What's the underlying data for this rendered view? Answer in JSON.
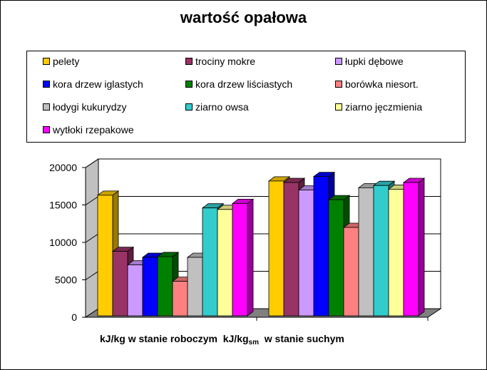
{
  "chart_data": {
    "type": "bar",
    "title": "wartość opałowa",
    "categories": [
      "kJ/kg w stanie roboczym",
      "kJ/kg w stanie suchym"
    ],
    "xlabel_parts": {
      "first": "kJ/kg w stanie roboczym",
      "second_main": "kJ/kg",
      "second_sub": "sm",
      "second_rest": "w stanie suchym"
    },
    "ylim": [
      0,
      20000
    ],
    "yticks": [
      "20000",
      "15000",
      "10000",
      "5000",
      "0"
    ],
    "grid": true,
    "legend_position": "top",
    "three_d": true,
    "series": [
      {
        "name": "pelety",
        "color": "#FFCC00",
        "values": [
          16300,
          18200
        ]
      },
      {
        "name": "trociny mokre",
        "color": "#993366",
        "values": [
          8800,
          18000
        ]
      },
      {
        "name": "łupki dębowe",
        "color": "#CC99FF",
        "values": [
          7000,
          17000
        ]
      },
      {
        "name": "kora drzew iglastych",
        "color": "#0000FF",
        "values": [
          8000,
          18800
        ]
      },
      {
        "name": "kora drzew liściastych",
        "color": "#008000",
        "values": [
          8100,
          15700
        ]
      },
      {
        "name": "borówka niesort.",
        "color": "#FF8080",
        "values": [
          4800,
          12000
        ]
      },
      {
        "name": "łodygi kukurydzy",
        "color": "#C0C0C0",
        "values": [
          8000,
          17300
        ]
      },
      {
        "name": "ziarno owsa",
        "color": "#33CCCC",
        "values": [
          14600,
          17600
        ]
      },
      {
        "name": "ziarno jęczmienia",
        "color": "#FFFF99",
        "values": [
          14400,
          17100
        ]
      },
      {
        "name": "wytłoki rzepakowe",
        "color": "#FF00FF",
        "values": [
          15200,
          18000
        ]
      }
    ]
  }
}
